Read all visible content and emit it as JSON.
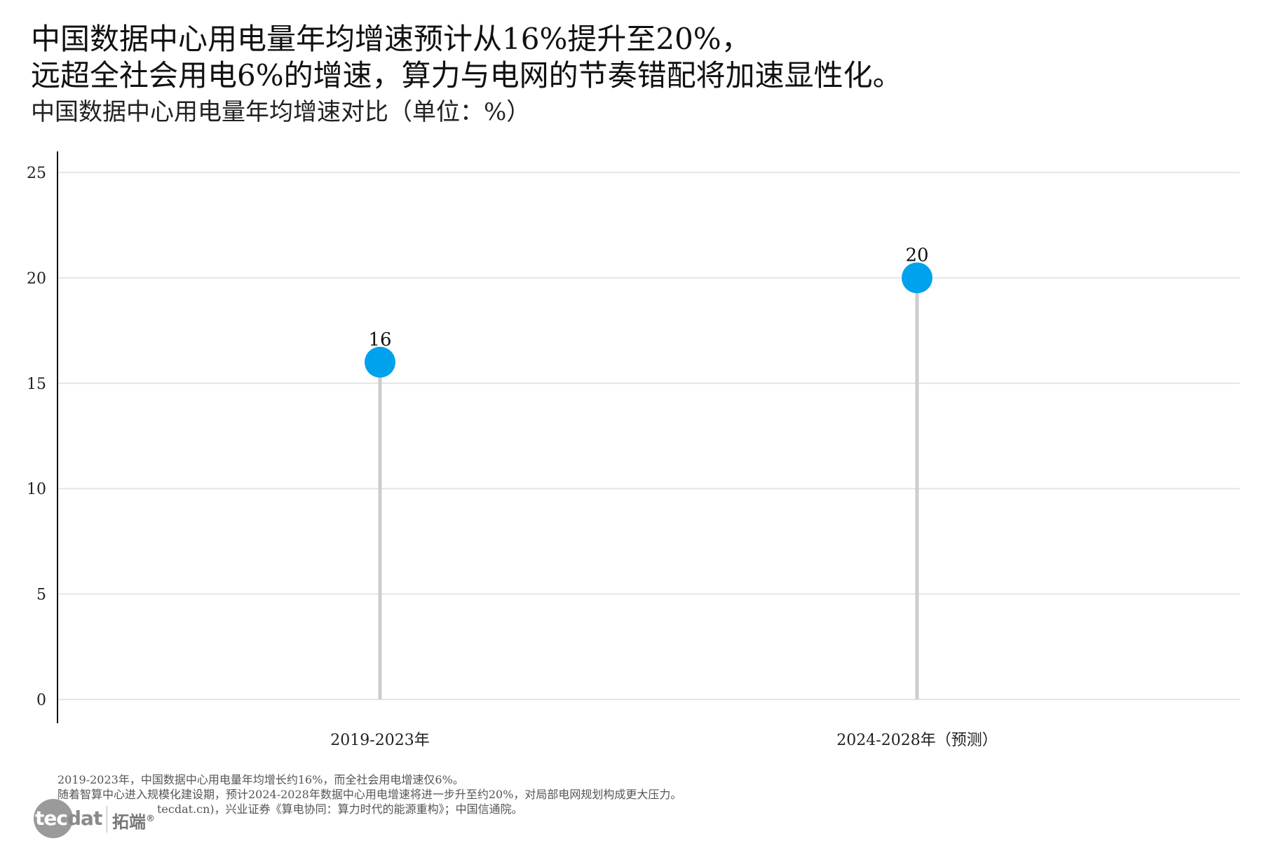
{
  "title_lines": [
    "中国数据中心用电量年均增速预计从16%提升至20%，",
    "远超全社会用电6%的增速，算力与电网的节奏错配将加速显性化。"
  ],
  "subtitle": "中国数据中心用电量年均增速对比（单位：%）",
  "chart_data": {
    "type": "lollipop",
    "categories": [
      "2019-2023年",
      "2024-2028年（预测）"
    ],
    "values": [
      16,
      20
    ],
    "data_labels": [
      "16",
      "20"
    ],
    "ylim": [
      0,
      26
    ],
    "yticks": [
      0,
      5,
      10,
      15,
      20,
      25
    ],
    "xlabel": "",
    "ylabel": "",
    "grid": "horizontal",
    "legend": "none",
    "point_color": "#00A2EE",
    "stem_color": "#CCCCCC",
    "grid_color": "#E5E5E5",
    "axis_color": "#111111"
  },
  "notes": [
    "2019-2023年，中国数据中心用电量年均增长约16%，而全社会用电增速仅6%。",
    "随着智算中心进入规模化建设期，预计2024-2028年数据中心用电增速将进一步升至约20%，对局部电网规划构成更大压力。",
    "tecdat.cn)，兴业证券《算电协同：算力时代的能源重构》；中国信通院。"
  ],
  "logo": {
    "mark_left": "tec",
    "mark_right": "dat",
    "name_cn": "拓端",
    "registered": "®"
  }
}
